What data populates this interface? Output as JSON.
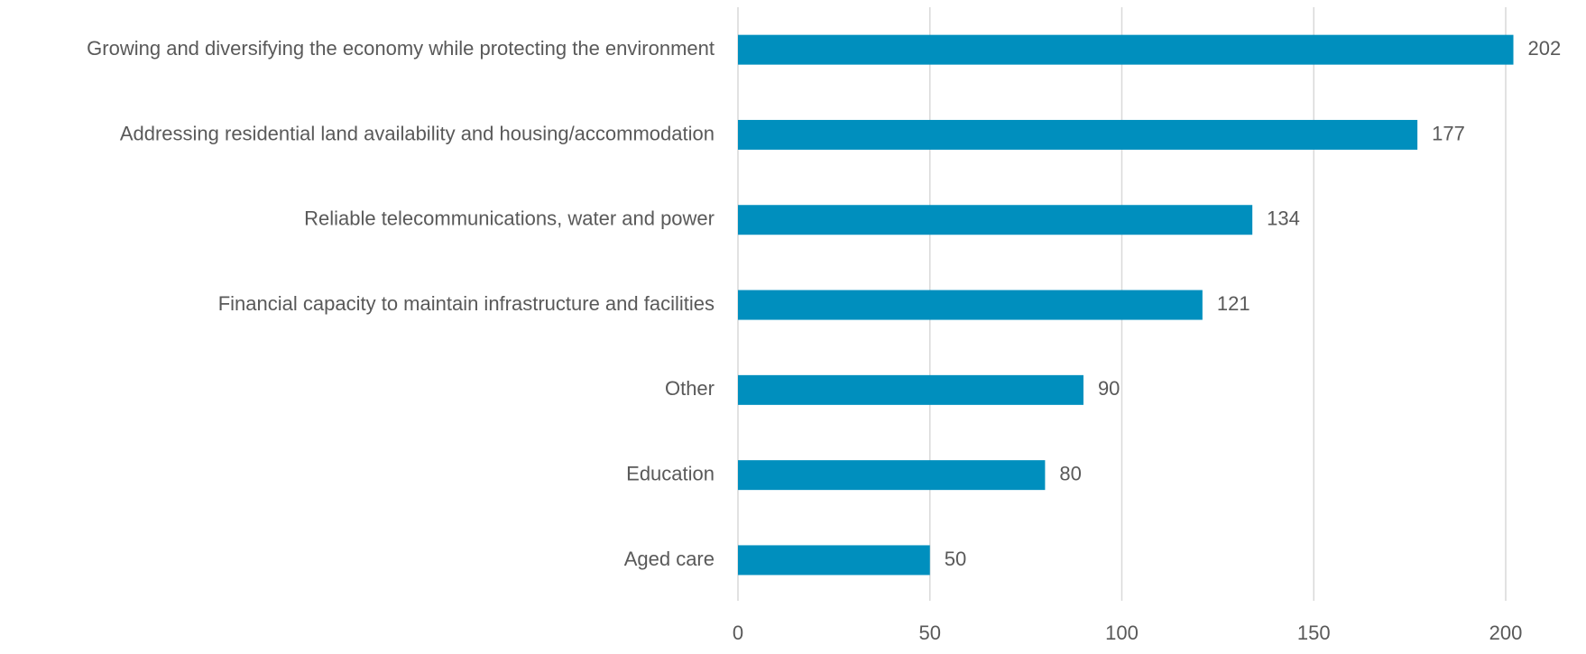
{
  "chart_data": {
    "type": "bar",
    "orientation": "horizontal",
    "categories": [
      "Growing and diversifying the economy while protecting the environment",
      "Addressing residential land availability and housing/accommodation",
      "Reliable telecommunications, water and power",
      "Financial capacity to maintain infrastructure and facilities",
      "Other",
      "Education",
      "Aged care"
    ],
    "values": [
      202,
      177,
      134,
      121,
      90,
      80,
      50
    ],
    "color": "#008fbe",
    "xlim": [
      0,
      200
    ],
    "xticks": [
      0,
      50,
      100,
      150,
      200
    ],
    "grid": true
  }
}
